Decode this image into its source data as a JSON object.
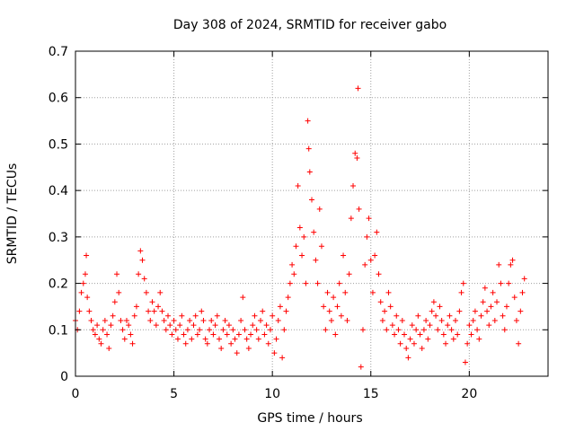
{
  "chart_data": {
    "type": "scatter",
    "title": "Day 308 of 2024, SRMTID for receiver gabo",
    "xlabel": "GPS time / hours",
    "ylabel": "SRMTID / TECUs",
    "xlim": [
      0,
      24
    ],
    "ylim": [
      0,
      0.7
    ],
    "xticks": [
      0,
      5,
      10,
      15,
      20
    ],
    "xtick_labels": [
      "0",
      "5",
      "10",
      "15",
      "20"
    ],
    "yticks": [
      0,
      0.1,
      0.2,
      0.3,
      0.4,
      0.5,
      0.6,
      0.7
    ],
    "ytick_labels": [
      "0",
      "0.1",
      "0.2",
      "0.3",
      "0.4",
      "0.5",
      "0.6",
      "0.7"
    ],
    "grid": true,
    "marker": "+",
    "series": [
      {
        "name": "SRMTID",
        "color": "#ff0000",
        "points": [
          [
            0.0,
            0.12
          ],
          [
            0.1,
            0.1
          ],
          [
            0.2,
            0.14
          ],
          [
            0.3,
            0.18
          ],
          [
            0.4,
            0.2
          ],
          [
            0.5,
            0.22
          ],
          [
            0.55,
            0.26
          ],
          [
            0.6,
            0.17
          ],
          [
            0.7,
            0.14
          ],
          [
            0.8,
            0.12
          ],
          [
            0.9,
            0.1
          ],
          [
            1.0,
            0.09
          ],
          [
            1.1,
            0.11
          ],
          [
            1.2,
            0.08
          ],
          [
            1.3,
            0.07
          ],
          [
            1.4,
            0.1
          ],
          [
            1.5,
            0.12
          ],
          [
            1.6,
            0.09
          ],
          [
            1.7,
            0.06
          ],
          [
            1.8,
            0.11
          ],
          [
            1.9,
            0.13
          ],
          [
            2.0,
            0.16
          ],
          [
            2.1,
            0.22
          ],
          [
            2.2,
            0.18
          ],
          [
            2.3,
            0.12
          ],
          [
            2.4,
            0.1
          ],
          [
            2.5,
            0.08
          ],
          [
            2.6,
            0.12
          ],
          [
            2.7,
            0.11
          ],
          [
            2.8,
            0.09
          ],
          [
            2.9,
            0.07
          ],
          [
            3.0,
            0.13
          ],
          [
            3.1,
            0.15
          ],
          [
            3.2,
            0.22
          ],
          [
            3.3,
            0.27
          ],
          [
            3.4,
            0.25
          ],
          [
            3.5,
            0.21
          ],
          [
            3.6,
            0.18
          ],
          [
            3.7,
            0.14
          ],
          [
            3.8,
            0.12
          ],
          [
            3.9,
            0.16
          ],
          [
            4.0,
            0.14
          ],
          [
            4.1,
            0.11
          ],
          [
            4.2,
            0.15
          ],
          [
            4.3,
            0.18
          ],
          [
            4.4,
            0.14
          ],
          [
            4.5,
            0.12
          ],
          [
            4.6,
            0.1
          ],
          [
            4.7,
            0.13
          ],
          [
            4.8,
            0.11
          ],
          [
            4.9,
            0.09
          ],
          [
            5.0,
            0.12
          ],
          [
            5.1,
            0.1
          ],
          [
            5.2,
            0.08
          ],
          [
            5.3,
            0.11
          ],
          [
            5.4,
            0.13
          ],
          [
            5.5,
            0.09
          ],
          [
            5.6,
            0.07
          ],
          [
            5.7,
            0.1
          ],
          [
            5.8,
            0.12
          ],
          [
            5.9,
            0.08
          ],
          [
            6.0,
            0.11
          ],
          [
            6.1,
            0.13
          ],
          [
            6.2,
            0.09
          ],
          [
            6.3,
            0.1
          ],
          [
            6.4,
            0.14
          ],
          [
            6.5,
            0.12
          ],
          [
            6.6,
            0.08
          ],
          [
            6.7,
            0.07
          ],
          [
            6.8,
            0.1
          ],
          [
            6.9,
            0.12
          ],
          [
            7.0,
            0.09
          ],
          [
            7.1,
            0.11
          ],
          [
            7.2,
            0.13
          ],
          [
            7.3,
            0.08
          ],
          [
            7.4,
            0.06
          ],
          [
            7.5,
            0.1
          ],
          [
            7.6,
            0.12
          ],
          [
            7.7,
            0.09
          ],
          [
            7.8,
            0.11
          ],
          [
            7.9,
            0.07
          ],
          [
            8.0,
            0.1
          ],
          [
            8.1,
            0.08
          ],
          [
            8.2,
            0.05
          ],
          [
            8.3,
            0.09
          ],
          [
            8.4,
            0.12
          ],
          [
            8.5,
            0.17
          ],
          [
            8.6,
            0.1
          ],
          [
            8.7,
            0.08
          ],
          [
            8.8,
            0.06
          ],
          [
            8.9,
            0.09
          ],
          [
            9.0,
            0.11
          ],
          [
            9.1,
            0.13
          ],
          [
            9.2,
            0.1
          ],
          [
            9.3,
            0.08
          ],
          [
            9.4,
            0.12
          ],
          [
            9.5,
            0.14
          ],
          [
            9.6,
            0.09
          ],
          [
            9.7,
            0.11
          ],
          [
            9.8,
            0.07
          ],
          [
            9.9,
            0.1
          ],
          [
            10.0,
            0.13
          ],
          [
            10.1,
            0.05
          ],
          [
            10.2,
            0.08
          ],
          [
            10.3,
            0.12
          ],
          [
            10.4,
            0.15
          ],
          [
            10.5,
            0.04
          ],
          [
            10.6,
            0.1
          ],
          [
            10.7,
            0.14
          ],
          [
            10.8,
            0.17
          ],
          [
            10.9,
            0.2
          ],
          [
            11.0,
            0.24
          ],
          [
            11.1,
            0.22
          ],
          [
            11.2,
            0.28
          ],
          [
            11.3,
            0.41
          ],
          [
            11.4,
            0.32
          ],
          [
            11.5,
            0.26
          ],
          [
            11.6,
            0.3
          ],
          [
            11.7,
            0.2
          ],
          [
            11.8,
            0.55
          ],
          [
            11.85,
            0.49
          ],
          [
            11.9,
            0.44
          ],
          [
            12.0,
            0.38
          ],
          [
            12.1,
            0.31
          ],
          [
            12.2,
            0.25
          ],
          [
            12.3,
            0.2
          ],
          [
            12.4,
            0.36
          ],
          [
            12.5,
            0.28
          ],
          [
            12.6,
            0.15
          ],
          [
            12.7,
            0.1
          ],
          [
            12.8,
            0.18
          ],
          [
            12.9,
            0.14
          ],
          [
            13.0,
            0.12
          ],
          [
            13.1,
            0.17
          ],
          [
            13.2,
            0.09
          ],
          [
            13.3,
            0.15
          ],
          [
            13.4,
            0.2
          ],
          [
            13.5,
            0.13
          ],
          [
            13.6,
            0.26
          ],
          [
            13.7,
            0.18
          ],
          [
            13.8,
            0.12
          ],
          [
            13.9,
            0.22
          ],
          [
            14.0,
            0.34
          ],
          [
            14.1,
            0.41
          ],
          [
            14.2,
            0.48
          ],
          [
            14.3,
            0.47
          ],
          [
            14.35,
            0.62
          ],
          [
            14.4,
            0.36
          ],
          [
            14.5,
            0.02
          ],
          [
            14.6,
            0.1
          ],
          [
            14.7,
            0.24
          ],
          [
            14.8,
            0.3
          ],
          [
            14.9,
            0.34
          ],
          [
            15.0,
            0.25
          ],
          [
            15.1,
            0.18
          ],
          [
            15.2,
            0.26
          ],
          [
            15.3,
            0.31
          ],
          [
            15.4,
            0.22
          ],
          [
            15.5,
            0.16
          ],
          [
            15.6,
            0.12
          ],
          [
            15.7,
            0.14
          ],
          [
            15.8,
            0.1
          ],
          [
            15.9,
            0.18
          ],
          [
            16.0,
            0.15
          ],
          [
            16.1,
            0.11
          ],
          [
            16.2,
            0.09
          ],
          [
            16.3,
            0.13
          ],
          [
            16.4,
            0.1
          ],
          [
            16.5,
            0.07
          ],
          [
            16.6,
            0.12
          ],
          [
            16.7,
            0.09
          ],
          [
            16.8,
            0.06
          ],
          [
            16.9,
            0.04
          ],
          [
            17.0,
            0.08
          ],
          [
            17.1,
            0.11
          ],
          [
            17.2,
            0.07
          ],
          [
            17.3,
            0.1
          ],
          [
            17.4,
            0.13
          ],
          [
            17.5,
            0.09
          ],
          [
            17.6,
            0.06
          ],
          [
            17.7,
            0.1
          ],
          [
            17.8,
            0.12
          ],
          [
            17.9,
            0.08
          ],
          [
            18.0,
            0.11
          ],
          [
            18.1,
            0.14
          ],
          [
            18.2,
            0.16
          ],
          [
            18.3,
            0.13
          ],
          [
            18.4,
            0.1
          ],
          [
            18.5,
            0.15
          ],
          [
            18.6,
            0.12
          ],
          [
            18.7,
            0.09
          ],
          [
            18.8,
            0.07
          ],
          [
            18.9,
            0.11
          ],
          [
            19.0,
            0.13
          ],
          [
            19.1,
            0.1
          ],
          [
            19.2,
            0.08
          ],
          [
            19.3,
            0.12
          ],
          [
            19.4,
            0.09
          ],
          [
            19.5,
            0.14
          ],
          [
            19.6,
            0.18
          ],
          [
            19.7,
            0.2
          ],
          [
            19.8,
            0.03
          ],
          [
            19.9,
            0.07
          ],
          [
            20.0,
            0.11
          ],
          [
            20.1,
            0.09
          ],
          [
            20.2,
            0.12
          ],
          [
            20.3,
            0.14
          ],
          [
            20.4,
            0.1
          ],
          [
            20.5,
            0.08
          ],
          [
            20.6,
            0.13
          ],
          [
            20.7,
            0.16
          ],
          [
            20.8,
            0.19
          ],
          [
            20.9,
            0.14
          ],
          [
            21.0,
            0.11
          ],
          [
            21.1,
            0.15
          ],
          [
            21.2,
            0.18
          ],
          [
            21.3,
            0.12
          ],
          [
            21.4,
            0.16
          ],
          [
            21.5,
            0.24
          ],
          [
            21.6,
            0.2
          ],
          [
            21.7,
            0.13
          ],
          [
            21.8,
            0.1
          ],
          [
            21.9,
            0.15
          ],
          [
            22.0,
            0.2
          ],
          [
            22.1,
            0.24
          ],
          [
            22.2,
            0.25
          ],
          [
            22.3,
            0.17
          ],
          [
            22.4,
            0.12
          ],
          [
            22.5,
            0.07
          ],
          [
            22.6,
            0.14
          ],
          [
            22.7,
            0.18
          ],
          [
            22.8,
            0.21
          ]
        ]
      }
    ]
  }
}
